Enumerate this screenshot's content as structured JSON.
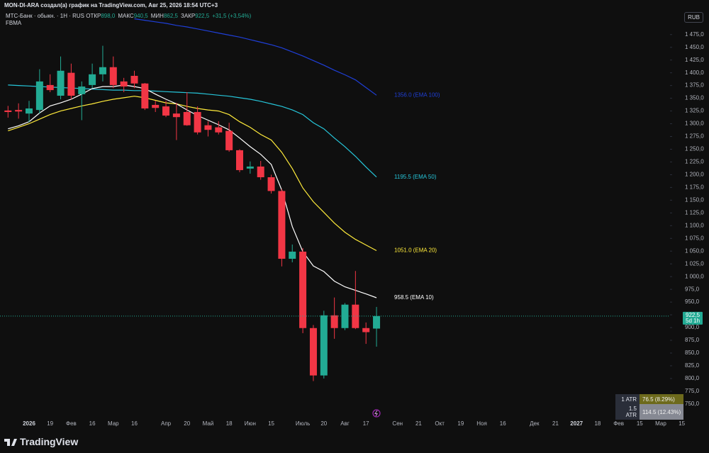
{
  "header": {
    "author_line": "MON-DI-ARA создал(а) график на TradingView.com, Авг 25, 2026 18:54 UTC+3",
    "currency": "RUB",
    "logo": "TradingView"
  },
  "chart_data": {
    "type": "candlestick",
    "symbol": "МТС-Банк · обыкн. · 1H · RUS",
    "ohlc_legend": [
      {
        "label": "ОТКР",
        "value": "898,0"
      },
      {
        "label": "МАКС",
        "value": "940,5"
      },
      {
        "label": "МИН",
        "value": "862,5"
      },
      {
        "label": "ЗАКР",
        "value": "922,5"
      }
    ],
    "change": "+31,5 (+3,54%)",
    "indicator": "FBMA",
    "categories": [
      null,
      null,
      "2026",
      null,
      "19",
      null,
      "Фев",
      null,
      "16",
      null,
      "Мар",
      null,
      "16",
      null,
      null,
      "Апр",
      null,
      "20",
      null,
      "Май",
      null,
      "18",
      null,
      "Июн",
      null,
      "15",
      null,
      null,
      "Июль",
      null,
      "20",
      null,
      "Авг",
      null,
      "17",
      null,
      null,
      "Сен",
      null,
      "21",
      null,
      "Окт",
      null,
      "19",
      null,
      "Ноя",
      null,
      "16",
      null,
      null,
      "Дек",
      null,
      "21",
      null,
      "2027",
      null,
      "18",
      null,
      "Фев",
      null,
      "15",
      null,
      "Мар",
      null,
      "15"
    ],
    "open": [
      1326,
      1327,
      1320,
      1327,
      1376,
      1355,
      1400,
      1358,
      1376,
      1397,
      1411,
      1383,
      1394,
      1379,
      1337,
      1334,
      1320,
      1323,
      1323,
      1297,
      1293,
      1286,
      1248,
      1212,
      1216,
      1195,
      1168,
      1035,
      1049,
      899,
      806,
      924,
      899,
      945,
      899,
      898,
      null,
      null,
      null,
      null,
      null,
      null,
      null,
      null,
      null,
      null,
      null,
      null,
      null,
      null,
      null,
      null,
      null,
      null,
      null,
      null,
      null,
      null,
      null,
      null,
      null,
      null,
      null,
      null,
      null
    ],
    "high": [
      1335,
      1340,
      1345,
      1407,
      1397,
      1432,
      1418,
      1383,
      1418,
      1453,
      1432,
      1390,
      1404,
      1380,
      1345,
      1345,
      1341,
      1362,
      1334,
      1305,
      1305,
      1302,
      1250,
      1226,
      1227,
      1200,
      1172,
      1063,
      1056,
      905,
      933,
      959,
      948,
      1011,
      910,
      940.5,
      null,
      null,
      null,
      null,
      null,
      null,
      null,
      null,
      null,
      null,
      null,
      null,
      null,
      null,
      null,
      null,
      null,
      null,
      null,
      null,
      null,
      null,
      null,
      null,
      null,
      null,
      null,
      null,
      null
    ],
    "low": [
      1312,
      1310,
      1303,
      1320,
      1362,
      1348,
      1348,
      1307,
      1370,
      1383,
      1370,
      1362,
      1370,
      1327,
      1323,
      1313,
      1268,
      1296,
      1279,
      1275,
      1279,
      1245,
      1205,
      1202,
      1190,
      1163,
      1020,
      1028,
      889,
      795,
      800,
      878,
      895,
      897,
      868,
      862.5,
      null,
      null,
      null,
      null,
      null,
      null,
      null,
      null,
      null,
      null,
      null,
      null,
      null,
      null,
      null,
      null,
      null,
      null,
      null,
      null,
      null,
      null,
      null,
      null,
      null,
      null,
      null,
      null,
      null
    ],
    "close": [
      1323,
      1324,
      1330,
      1383,
      1366,
      1404,
      1355,
      1373,
      1397,
      1411,
      1376,
      1373,
      1379,
      1330,
      1331,
      1316,
      1313,
      1297,
      1283,
      1288,
      1283,
      1248,
      1209,
      1216,
      1195,
      1168,
      1035,
      1049,
      899,
      806,
      924,
      899,
      945,
      899,
      891,
      922.5,
      null,
      null,
      null,
      null,
      null,
      null,
      null,
      null,
      null,
      null,
      null,
      null,
      null,
      null,
      null,
      null,
      null,
      null,
      null,
      null,
      null,
      null,
      null,
      null,
      null,
      null,
      null,
      null,
      null
    ],
    "up_color": "#22ab94",
    "down_color": "#f23645",
    "series": [
      {
        "name": "EMA 100",
        "color": "#1f3fd8",
        "end_label": "1356.0 (EMA 100)",
        "values": [
          null,
          null,
          null,
          null,
          null,
          null,
          null,
          null,
          null,
          null,
          null,
          null,
          1506,
          1503,
          1500,
          1497,
          1493,
          1490,
          1486,
          1482,
          1478,
          1474,
          1470,
          1465,
          1460,
          1455,
          1449,
          1441,
          1433,
          1424,
          1415,
          1405,
          1396,
          1386,
          1371,
          1356,
          null,
          null,
          null,
          null,
          null,
          null,
          null,
          null,
          null,
          null,
          null,
          null,
          null,
          null,
          null,
          null,
          null,
          null,
          null,
          null,
          null,
          null,
          null,
          null,
          null,
          null,
          null,
          null,
          null
        ]
      },
      {
        "name": "EMA 50",
        "color": "#26c6da",
        "end_label": "1195.5 (EMA 50)",
        "values": [
          1376,
          1375,
          1374,
          1373,
          1372,
          1371,
          1370,
          1369,
          1368,
          1367,
          1366,
          1366,
          1365,
          1365,
          1364,
          1363,
          1362,
          1361,
          1360,
          1358,
          1356,
          1354,
          1351,
          1348,
          1344,
          1339,
          1334,
          1327,
          1318,
          1302,
          1290,
          1272,
          1255,
          1236,
          1215,
          1195.5,
          null,
          null,
          null,
          null,
          null,
          null,
          null,
          null,
          null,
          null,
          null,
          null,
          null,
          null,
          null,
          null,
          null,
          null,
          null,
          null,
          null,
          null,
          null,
          null,
          null,
          null,
          null,
          null,
          null
        ]
      },
      {
        "name": "EMA 20",
        "color": "#ffeb3b",
        "end_label": "1051.0 (EMA 20)",
        "values": [
          1286,
          1293,
          1300,
          1309,
          1318,
          1325,
          1330,
          1335,
          1339,
          1344,
          1348,
          1351,
          1354,
          1351,
          1346,
          1341,
          1339,
          1334,
          1330,
          1327,
          1325,
          1318,
          1304,
          1293,
          1279,
          1268,
          1244,
          1212,
          1174,
          1147,
          1126,
          1105,
          1087,
          1073,
          1062,
          1051,
          null,
          null,
          null,
          null,
          null,
          null,
          null,
          null,
          null,
          null,
          null,
          null,
          null,
          null,
          null,
          null,
          null,
          null,
          null,
          null,
          null,
          null,
          null,
          null,
          null,
          null,
          null,
          null,
          null
        ]
      },
      {
        "name": "EMA 10",
        "color": "#ffffff",
        "end_label": "958.5 (EMA 10)",
        "values": [
          1290,
          1296,
          1304,
          1321,
          1335,
          1341,
          1348,
          1358,
          1369,
          1373,
          1373,
          1376,
          1373,
          1369,
          1358,
          1348,
          1339,
          1327,
          1316,
          1307,
          1298,
          1288,
          1272,
          1255,
          1240,
          1220,
          1170,
          1098,
          1049,
          1021,
          1010,
          991,
          980,
          973,
          966,
          958.5,
          null,
          null,
          null,
          null,
          null,
          null,
          null,
          null,
          null,
          null,
          null,
          null,
          null,
          null,
          null,
          null,
          null,
          null,
          null,
          null,
          null,
          null,
          null,
          null,
          null,
          null,
          null,
          null,
          null
        ]
      }
    ],
    "ylim": [
      722,
      1515
    ],
    "yticks": [
      {
        "value": 750,
        "label": "750,0"
      },
      {
        "value": 775,
        "label": "775,0"
      },
      {
        "value": 800,
        "label": "800,0"
      },
      {
        "value": 825,
        "label": "825,0"
      },
      {
        "value": 850,
        "label": "850,0"
      },
      {
        "value": 875,
        "label": "875,0"
      },
      {
        "value": 900,
        "label": "900,0"
      },
      {
        "value": 925,
        "label": "925,0"
      },
      {
        "value": 950,
        "label": "950,0"
      },
      {
        "value": 975,
        "label": "975,0"
      },
      {
        "value": 1000,
        "label": "1 000,0"
      },
      {
        "value": 1025,
        "label": "1 025,0"
      },
      {
        "value": 1050,
        "label": "1 050,0"
      },
      {
        "value": 1075,
        "label": "1 075,0"
      },
      {
        "value": 1100,
        "label": "1 100,0"
      },
      {
        "value": 1125,
        "label": "1 125,0"
      },
      {
        "value": 1150,
        "label": "1 150,0"
      },
      {
        "value": 1175,
        "label": "1 175,0"
      },
      {
        "value": 1200,
        "label": "1 200,0"
      },
      {
        "value": 1225,
        "label": "1 225,0"
      },
      {
        "value": 1250,
        "label": "1 250,0"
      },
      {
        "value": 1275,
        "label": "1 275,0"
      },
      {
        "value": 1300,
        "label": "1 300,0"
      },
      {
        "value": 1325,
        "label": "1 325,0"
      },
      {
        "value": 1350,
        "label": "1 350,0"
      },
      {
        "value": 1375,
        "label": "1 375,0"
      },
      {
        "value": 1400,
        "label": "1 400,0"
      },
      {
        "value": 1425,
        "label": "1 425,0"
      },
      {
        "value": 1450,
        "label": "1 450,0"
      },
      {
        "value": 1475,
        "label": "1 475,0"
      }
    ],
    "last_price": {
      "value": 922.5,
      "label": "922,5",
      "countdown": "5d 1h"
    },
    "atr_table": [
      [
        "1 ATR",
        "76.5 (8.29%)"
      ],
      [
        "1.5 ATR",
        "114.5 (12.43%)"
      ]
    ]
  }
}
